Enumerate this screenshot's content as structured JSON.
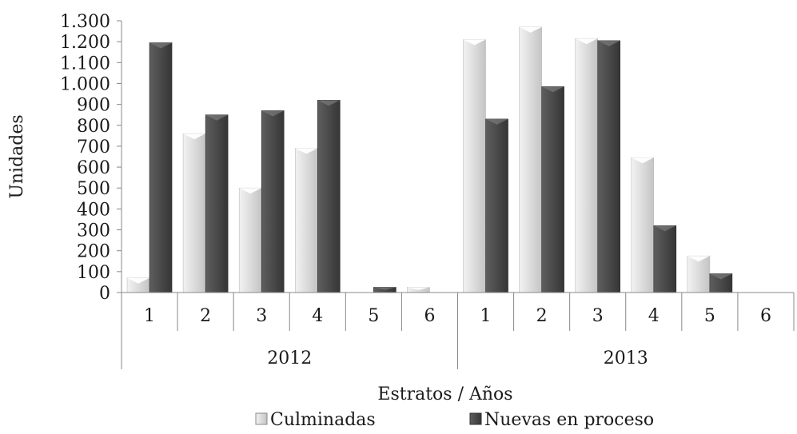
{
  "chart_data": {
    "type": "bar",
    "groups": [
      {
        "label": "2012",
        "categories": [
          "1",
          "2",
          "3",
          "4",
          "5",
          "6"
        ]
      },
      {
        "label": "2013",
        "categories": [
          "1",
          "2",
          "3",
          "4",
          "5",
          "6"
        ]
      }
    ],
    "series": [
      {
        "name": "Culminadas",
        "color": "#d9d9d9",
        "values": [
          70,
          760,
          500,
          690,
          0,
          25,
          1210,
          1270,
          1215,
          645,
          175,
          0
        ]
      },
      {
        "name": "Nuevas en proceso",
        "color": "#4d4d4d",
        "values": [
          1195,
          850,
          870,
          920,
          25,
          0,
          830,
          985,
          1205,
          320,
          90,
          0
        ]
      }
    ],
    "title": "",
    "xlabel": "Estratos / Años",
    "ylabel": "Unidades",
    "ylim": [
      0,
      1300
    ],
    "yticks": [
      0,
      100,
      200,
      300,
      400,
      500,
      600,
      700,
      800,
      900,
      1000,
      1100,
      1200,
      1300
    ],
    "ytick_labels": [
      "0",
      "100",
      "200",
      "300",
      "400",
      "500",
      "600",
      "700",
      "800",
      "900",
      "1.000",
      "1.100",
      "1.200",
      "1.300"
    ],
    "grid": false,
    "legend_position": "bottom"
  }
}
